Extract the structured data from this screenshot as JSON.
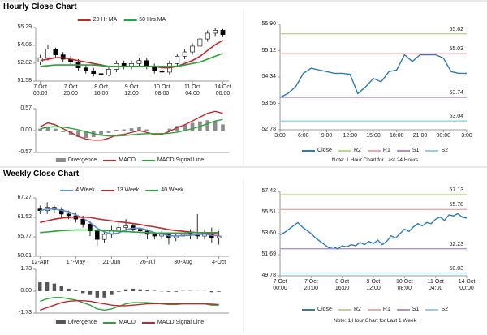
{
  "headers": [
    "Hourly Close Chart",
    "Weekly Close Chart"
  ],
  "chart_data": [
    {
      "type": "candlestick",
      "open": [
        52.9,
        53.2,
        53.8,
        53.4,
        53.1,
        52.9,
        52.5,
        52.3,
        52.1,
        52.0,
        52.4,
        52.8,
        52.6,
        52.8,
        53.0,
        52.6,
        52.3,
        52.2,
        52.8,
        53.3,
        53.6,
        54.0,
        54.5,
        54.9,
        55.1
      ],
      "high": [
        53.4,
        54.1,
        53.9,
        53.6,
        53.3,
        53.1,
        52.7,
        52.5,
        52.3,
        52.6,
        53.0,
        53.0,
        53.0,
        53.2,
        53.2,
        52.8,
        52.5,
        53.0,
        53.5,
        53.8,
        54.2,
        54.7,
        55.1,
        55.3,
        55.2
      ],
      "low": [
        52.7,
        53.0,
        53.2,
        52.9,
        52.7,
        52.3,
        52.1,
        51.9,
        51.8,
        51.9,
        52.2,
        52.4,
        52.4,
        52.6,
        52.4,
        52.1,
        51.9,
        52.0,
        52.6,
        53.1,
        53.4,
        53.8,
        54.3,
        54.7,
        54.6
      ],
      "close": [
        53.2,
        53.8,
        53.4,
        53.1,
        52.9,
        52.5,
        52.3,
        52.1,
        52.0,
        52.4,
        52.8,
        52.6,
        52.8,
        53.0,
        52.6,
        52.3,
        52.2,
        52.8,
        53.3,
        53.6,
        54.0,
        54.5,
        54.9,
        55.1,
        54.8
      ],
      "candle_color": "#000000",
      "series": [
        {
          "name": "20 Hr MA",
          "color": "#c0282d",
          "values": [
            53.0,
            53.1,
            53.2,
            53.2,
            53.1,
            53.0,
            52.9,
            52.8,
            52.7,
            52.6,
            52.6,
            52.6,
            52.6,
            52.6,
            52.6,
            52.6,
            52.5,
            52.5,
            52.6,
            52.8,
            53.0,
            53.3,
            53.7,
            54.1,
            54.4
          ]
        },
        {
          "name": "50 Hrs MA",
          "color": "#2aa33a",
          "values": [
            52.6,
            52.65,
            52.7,
            52.7,
            52.7,
            52.7,
            52.7,
            52.7,
            52.65,
            52.6,
            52.6,
            52.6,
            52.6,
            52.6,
            52.6,
            52.6,
            52.6,
            52.6,
            52.6,
            52.7,
            52.8,
            52.9,
            53.1,
            53.3,
            53.5
          ]
        }
      ],
      "xlim": [
        -0.6,
        24.8
      ],
      "xticks": [
        {
          "value": 0,
          "label": "7 Oct\n00:00"
        },
        {
          "value": 4,
          "label": "7 Oct\n20:00"
        },
        {
          "value": 8,
          "label": "8 Oct\n16:00"
        },
        {
          "value": 12,
          "label": "9 Oct\n12:00"
        },
        {
          "value": 16,
          "label": "10 Oct\n08:00"
        },
        {
          "value": 20,
          "label": "11 Oct\n04:00"
        },
        {
          "value": 24,
          "label": "14 Oct\n00:00"
        }
      ],
      "ylim": [
        51.58,
        55.29
      ],
      "yticks": [
        55.29,
        54.06,
        52.82,
        51.58
      ],
      "legend": "top"
    },
    {
      "type": "macd",
      "series": [
        {
          "name": "Divergence",
          "color": "#8c8c8c",
          "kind": "bar",
          "values": [
            0.05,
            0.11,
            0.05,
            -0.04,
            -0.11,
            -0.17,
            -0.19,
            -0.17,
            -0.13,
            -0.06,
            0.02,
            0.03,
            0.06,
            0.09,
            0.03,
            -0.02,
            -0.02,
            0.05,
            0.12,
            0.15,
            0.2,
            0.24,
            0.27,
            0.25,
            0.16
          ]
        },
        {
          "name": "MACD",
          "color": "#c0282d",
          "kind": "line",
          "values": [
            0.1,
            0.2,
            0.15,
            0.05,
            -0.05,
            -0.15,
            -0.22,
            -0.25,
            -0.25,
            -0.2,
            -0.12,
            -0.1,
            -0.05,
            0.0,
            -0.05,
            -0.1,
            -0.1,
            -0.02,
            0.08,
            0.15,
            0.25,
            0.35,
            0.45,
            0.5,
            0.45
          ]
        },
        {
          "name": "MACD Signal Line",
          "color": "#2aa33a",
          "kind": "line",
          "values": [
            0.05,
            0.09,
            0.1,
            0.09,
            0.06,
            0.02,
            -0.03,
            -0.08,
            -0.12,
            -0.14,
            -0.14,
            -0.13,
            -0.11,
            -0.09,
            -0.08,
            -0.08,
            -0.08,
            -0.07,
            -0.04,
            0.0,
            0.05,
            0.11,
            0.18,
            0.25,
            0.29
          ]
        }
      ],
      "xlim": [
        -0.6,
        24.8
      ],
      "ylim": [
        -0.57,
        0.57
      ],
      "yticks": [
        0.57,
        {
          "value": 0,
          "label": "0.00"
        },
        -0.57
      ],
      "legend": "bottom"
    },
    {
      "type": "line",
      "series": [
        {
          "name": "Close",
          "color": "#2c7bb6",
          "values": [
            53.74,
            53.85,
            54.05,
            54.45,
            54.6,
            54.55,
            54.5,
            54.45,
            54.45,
            54.42,
            53.85,
            54.05,
            54.3,
            54.2,
            54.5,
            54.55,
            55.0,
            54.8,
            55.0,
            55.0,
            55.0,
            54.9,
            54.5,
            54.45,
            54.45
          ]
        }
      ],
      "levels": [
        {
          "name": "R2",
          "color": "#b7d88e",
          "value": 55.62
        },
        {
          "name": "R1",
          "color": "#f0a8a8",
          "value": 55.03
        },
        {
          "name": "S1",
          "color": "#b790c9",
          "value": 53.74
        },
        {
          "name": "S2",
          "color": "#8fd0e6",
          "value": 53.04
        }
      ],
      "xlim": [
        0,
        24
      ],
      "xticks": [
        {
          "value": 0,
          "label": "3:00"
        },
        {
          "value": 3,
          "label": "6:00"
        },
        {
          "value": 6,
          "label": "9:00"
        },
        {
          "value": 9,
          "label": "12:00"
        },
        {
          "value": 12,
          "label": "15:00"
        },
        {
          "value": 15,
          "label": "18:00"
        },
        {
          "value": 18,
          "label": "21:00"
        },
        {
          "value": 21,
          "label": "00:00"
        },
        {
          "value": 24,
          "label": "3:00"
        }
      ],
      "ylim": [
        52.78,
        55.9
      ],
      "yticks": [
        {
          "value": 55.9,
          "label": "55.90"
        },
        55.12,
        54.34,
        53.56,
        52.78
      ],
      "legend": "bottom",
      "note": "Note: 1 Hour Chart for Last 24 Hours"
    },
    {
      "type": "candlestick",
      "open": [
        64.0,
        63.5,
        64.5,
        63.8,
        62.5,
        62.0,
        61.0,
        59.5,
        57.5,
        55.0,
        56.5,
        57.5,
        58.5,
        59.0,
        58.0,
        57.5,
        56.5,
        56.0,
        56.5,
        55.5,
        56.0,
        57.0,
        56.5,
        56.0,
        57.0,
        55.5
      ],
      "high": [
        65.0,
        66.0,
        65.0,
        64.5,
        63.5,
        63.0,
        62.0,
        60.5,
        58.5,
        57.5,
        59.0,
        60.0,
        61.0,
        59.5,
        58.5,
        58.0,
        57.0,
        57.5,
        57.0,
        57.0,
        59.0,
        58.0,
        62.5,
        58.0,
        58.5,
        57.5
      ],
      "low": [
        62.5,
        62.5,
        63.0,
        61.5,
        61.0,
        60.0,
        58.5,
        56.0,
        53.0,
        54.0,
        55.5,
        57.0,
        57.5,
        57.0,
        56.0,
        55.0,
        55.0,
        55.0,
        53.5,
        54.5,
        55.5,
        55.0,
        55.0,
        55.0,
        54.0,
        53.5
      ],
      "close": [
        63.5,
        64.5,
        63.8,
        62.5,
        62.0,
        61.0,
        59.5,
        57.5,
        55.0,
        56.5,
        57.5,
        58.5,
        59.0,
        58.0,
        57.5,
        56.5,
        56.0,
        56.5,
        55.5,
        56.0,
        57.0,
        56.5,
        56.0,
        57.0,
        55.5,
        56.0
      ],
      "candle_color": "#000000",
      "series": [
        {
          "name": "4 Week",
          "color": "#5b8fcf",
          "values": [
            63.5,
            64.0,
            64.0,
            63.6,
            63.2,
            62.3,
            61.3,
            60.0,
            58.3,
            57.2,
            56.6,
            56.9,
            57.9,
            58.3,
            58.3,
            57.8,
            57.0,
            56.6,
            56.1,
            56.0,
            56.2,
            56.2,
            56.4,
            56.6,
            56.2,
            56.1
          ]
        },
        {
          "name": "13 Week",
          "color": "#c0282d",
          "values": [
            60.0,
            60.5,
            61.0,
            61.3,
            61.5,
            61.6,
            61.6,
            61.5,
            61.1,
            60.8,
            60.5,
            60.2,
            60.0,
            59.7,
            59.4,
            59.0,
            58.7,
            58.3,
            57.9,
            57.6,
            57.4,
            57.2,
            57.0,
            56.9,
            56.7,
            56.6
          ]
        },
        {
          "name": "40 Week",
          "color": "#2aa33a",
          "values": [
            57.0,
            57.2,
            57.4,
            57.6,
            57.7,
            57.8,
            57.8,
            57.8,
            57.7,
            57.6,
            57.5,
            57.4,
            57.3,
            57.2,
            57.1,
            57.0,
            56.9,
            56.9,
            56.9,
            56.9,
            56.9,
            57.0,
            57.0,
            57.0,
            57.0,
            57.0
          ]
        }
      ],
      "xlim": [
        -0.6,
        26.4
      ],
      "xticks": [
        {
          "value": 0,
          "label": "12-Apr"
        },
        {
          "value": 5,
          "label": "17-May"
        },
        {
          "value": 10,
          "label": "21-Jun"
        },
        {
          "value": 15,
          "label": "26-Jul"
        },
        {
          "value": 20,
          "label": "30-Aug"
        },
        {
          "value": 25,
          "label": "4-Oct"
        }
      ],
      "ylim": [
        50.01,
        67.27
      ],
      "yticks": [
        67.27,
        61.52,
        55.77,
        50.01
      ],
      "legend": "top"
    },
    {
      "type": "macd",
      "series": [
        {
          "name": "Divergence",
          "color": "#555555",
          "kind": "bar",
          "values": [
            0.7,
            0.7,
            0.6,
            0.4,
            0.2,
            0.05,
            -0.15,
            -0.3,
            -0.5,
            -0.5,
            -0.3,
            -0.05,
            0.15,
            0.2,
            0.15,
            0.1,
            0.03,
            -0.02,
            -0.05,
            -0.05,
            0.02,
            0.02,
            0.01,
            0.01,
            -0.08,
            -0.05
          ]
        },
        {
          "name": "MACD",
          "color": "#2aa33a",
          "kind": "line",
          "values": [
            -0.8,
            -0.6,
            -0.5,
            -0.5,
            -0.6,
            -0.7,
            -0.9,
            -1.1,
            -1.4,
            -1.5,
            -1.4,
            -1.2,
            -1.0,
            -0.9,
            -0.9,
            -0.9,
            -0.95,
            -1.0,
            -1.05,
            -1.05,
            -1.0,
            -1.0,
            -1.0,
            -1.0,
            -1.1,
            -1.1
          ]
        },
        {
          "name": "MACD Signal Line",
          "color": "#c0282d",
          "kind": "line",
          "values": [
            -1.5,
            -1.3,
            -1.1,
            -0.9,
            -0.8,
            -0.75,
            -0.75,
            -0.8,
            -0.9,
            -1.0,
            -1.1,
            -1.15,
            -1.15,
            -1.1,
            -1.05,
            -1.0,
            -0.98,
            -0.98,
            -1.0,
            -1.0,
            -1.0,
            -1.0,
            -1.0,
            -1.0,
            -1.02,
            -1.05
          ]
        }
      ],
      "xlim": [
        -0.6,
        26.4
      ],
      "ylim": [
        -1.73,
        1.73
      ],
      "yticks": [
        1.73,
        {
          "value": 0,
          "label": "0.00"
        },
        -1.73
      ],
      "legend": "bottom"
    },
    {
      "type": "line",
      "series": [
        {
          "name": "Close",
          "color": "#2c7bb6",
          "values": [
            53.5,
            53.7,
            54.0,
            54.3,
            54.6,
            54.2,
            53.9,
            53.6,
            53.2,
            52.9,
            52.6,
            52.3,
            52.4,
            52.2,
            52.5,
            52.4,
            52.6,
            52.5,
            52.8,
            52.6,
            52.9,
            52.7,
            53.0,
            52.6,
            52.9,
            53.4,
            53.2,
            53.6,
            54.0,
            53.8,
            54.2,
            54.5,
            54.3,
            54.6,
            54.5,
            54.9,
            55.1,
            54.8,
            55.3,
            55.2,
            55.4,
            55.1,
            55.0
          ]
        }
      ],
      "levels": [
        {
          "name": "R2",
          "color": "#b7d88e",
          "value": 57.13
        },
        {
          "name": "R1",
          "color": "#f0a8a8",
          "value": 55.78
        },
        {
          "name": "S1",
          "color": "#b790c9",
          "value": 52.23
        },
        {
          "name": "S2",
          "color": "#8fd0e6",
          "value": 50.03
        }
      ],
      "xlim": [
        0,
        42
      ],
      "xticks": [
        {
          "value": 0,
          "label": "7 Oct\n00:00"
        },
        {
          "value": 7,
          "label": "7 Oct\n20:00"
        },
        {
          "value": 14,
          "label": "8 Oct\n16:00"
        },
        {
          "value": 21,
          "label": "9 Oct\n12:00"
        },
        {
          "value": 28,
          "label": "10 Oct\n08:00"
        },
        {
          "value": 35,
          "label": "11 Oct\n04:00"
        },
        {
          "value": 42,
          "label": "14 Oct\n00:00"
        }
      ],
      "ylim": [
        49.78,
        57.42
      ],
      "yticks": [
        57.42,
        55.51,
        {
          "value": 53.6,
          "label": "53.60"
        },
        51.69,
        49.78
      ],
      "legend": "bottom",
      "note": "Note: 1 Hour Chart for Last 1 Week"
    }
  ]
}
